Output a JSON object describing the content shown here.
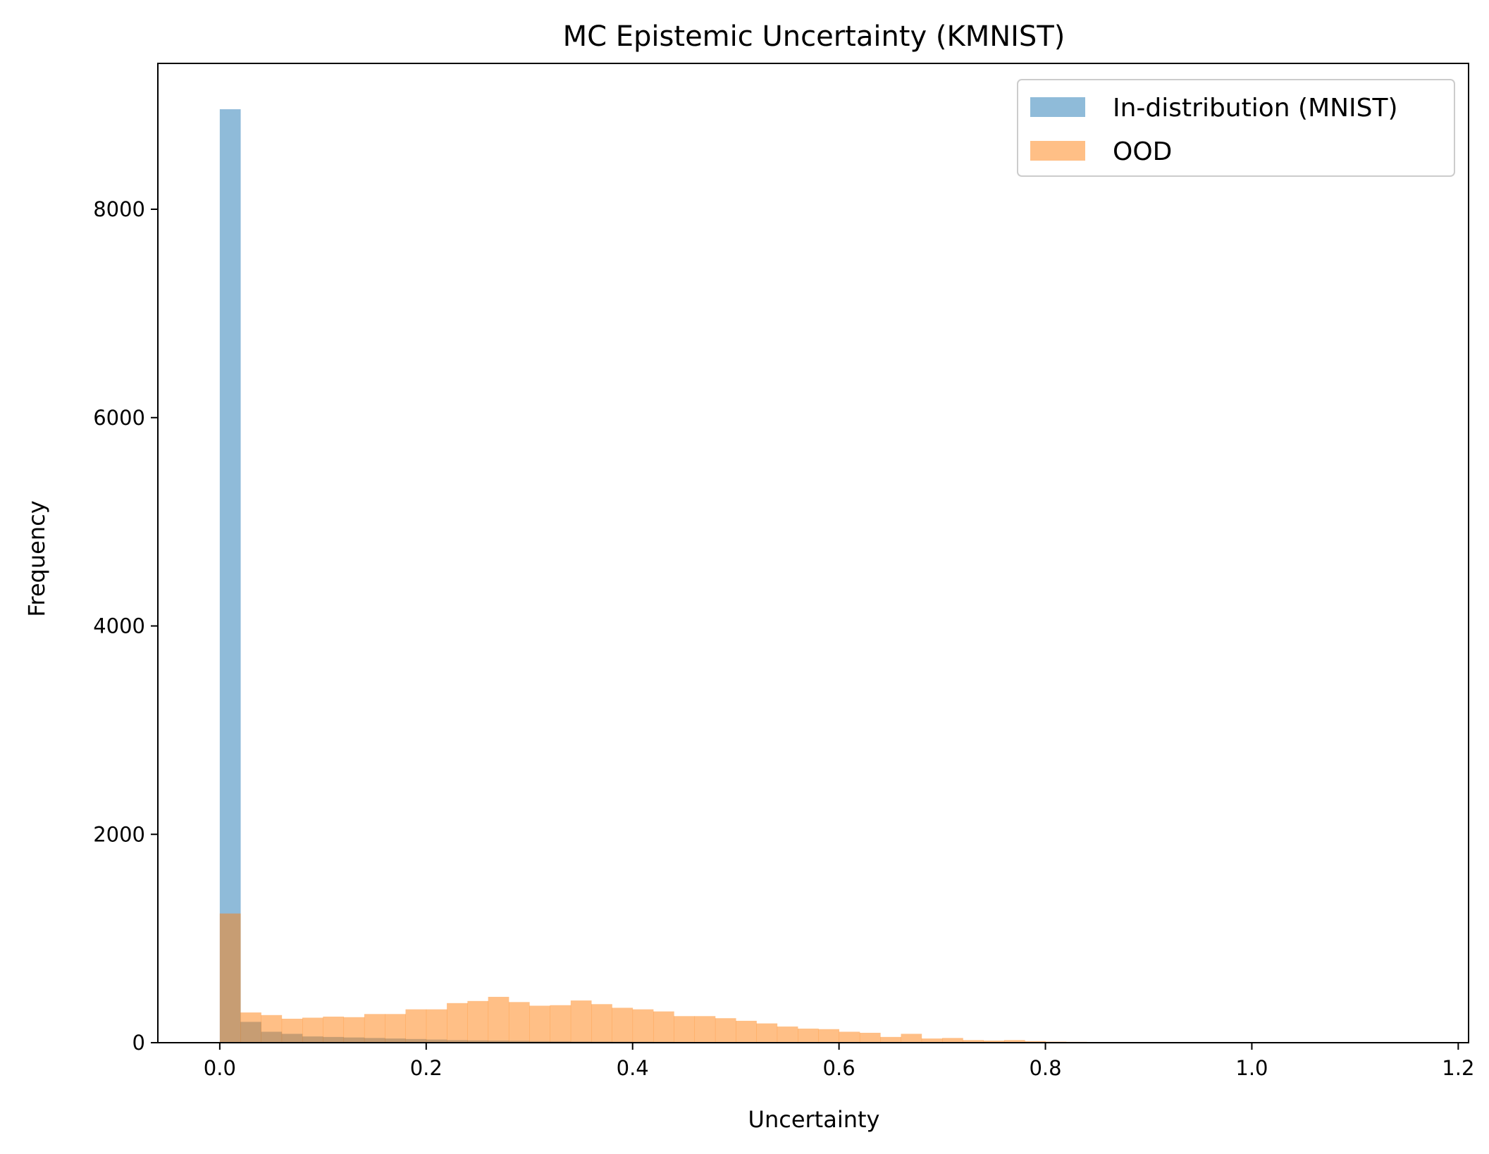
{
  "chart_data": {
    "type": "bar",
    "title": "MC Epistemic Uncertainty (KMNIST)",
    "xlabel": "Uncertainty",
    "ylabel": "Frequency",
    "xlim": [
      -0.06,
      1.21
    ],
    "ylim": [
      0,
      9400
    ],
    "xticks": [
      0.0,
      0.2,
      0.4,
      0.6,
      0.8,
      1.0,
      1.2
    ],
    "xtick_labels": [
      "0.0",
      "0.2",
      "0.4",
      "0.6",
      "0.8",
      "1.0",
      "1.2"
    ],
    "yticks": [
      0,
      2000,
      4000,
      6000,
      8000
    ],
    "ytick_labels": [
      "0",
      "2000",
      "4000",
      "6000",
      "8000"
    ],
    "grid": false,
    "legend_position": "top-right",
    "bin_width": 0.02,
    "bin_start": 0.0,
    "series": [
      {
        "name": "In-distribution (MNIST)",
        "color": "#1f77b4",
        "opacity": 0.5,
        "values": [
          8960,
          200,
          105,
          85,
          60,
          55,
          50,
          45,
          40,
          35,
          30,
          25,
          22,
          20,
          18,
          15,
          14,
          12,
          11,
          10,
          9,
          8,
          7,
          6,
          5,
          5,
          4,
          4,
          3,
          3,
          3,
          2,
          2,
          2,
          2,
          1,
          1,
          1,
          1,
          1,
          1,
          1,
          0,
          0,
          0,
          0,
          0,
          0,
          0,
          0,
          0,
          0,
          0,
          0,
          0,
          0,
          0,
          0,
          0,
          0
        ]
      },
      {
        "name": "OOD",
        "color": "#ff7f0e",
        "opacity": 0.5,
        "values": [
          1240,
          290,
          265,
          230,
          240,
          250,
          245,
          275,
          275,
          320,
          320,
          380,
          400,
          440,
          390,
          355,
          360,
          405,
          370,
          335,
          320,
          300,
          255,
          255,
          235,
          210,
          185,
          155,
          135,
          130,
          105,
          95,
          55,
          85,
          40,
          45,
          25,
          20,
          25,
          15,
          10,
          8,
          6,
          5,
          4,
          3,
          2,
          2,
          1,
          1,
          1,
          1,
          1,
          0,
          0,
          0,
          0,
          0,
          0,
          0
        ]
      }
    ]
  }
}
